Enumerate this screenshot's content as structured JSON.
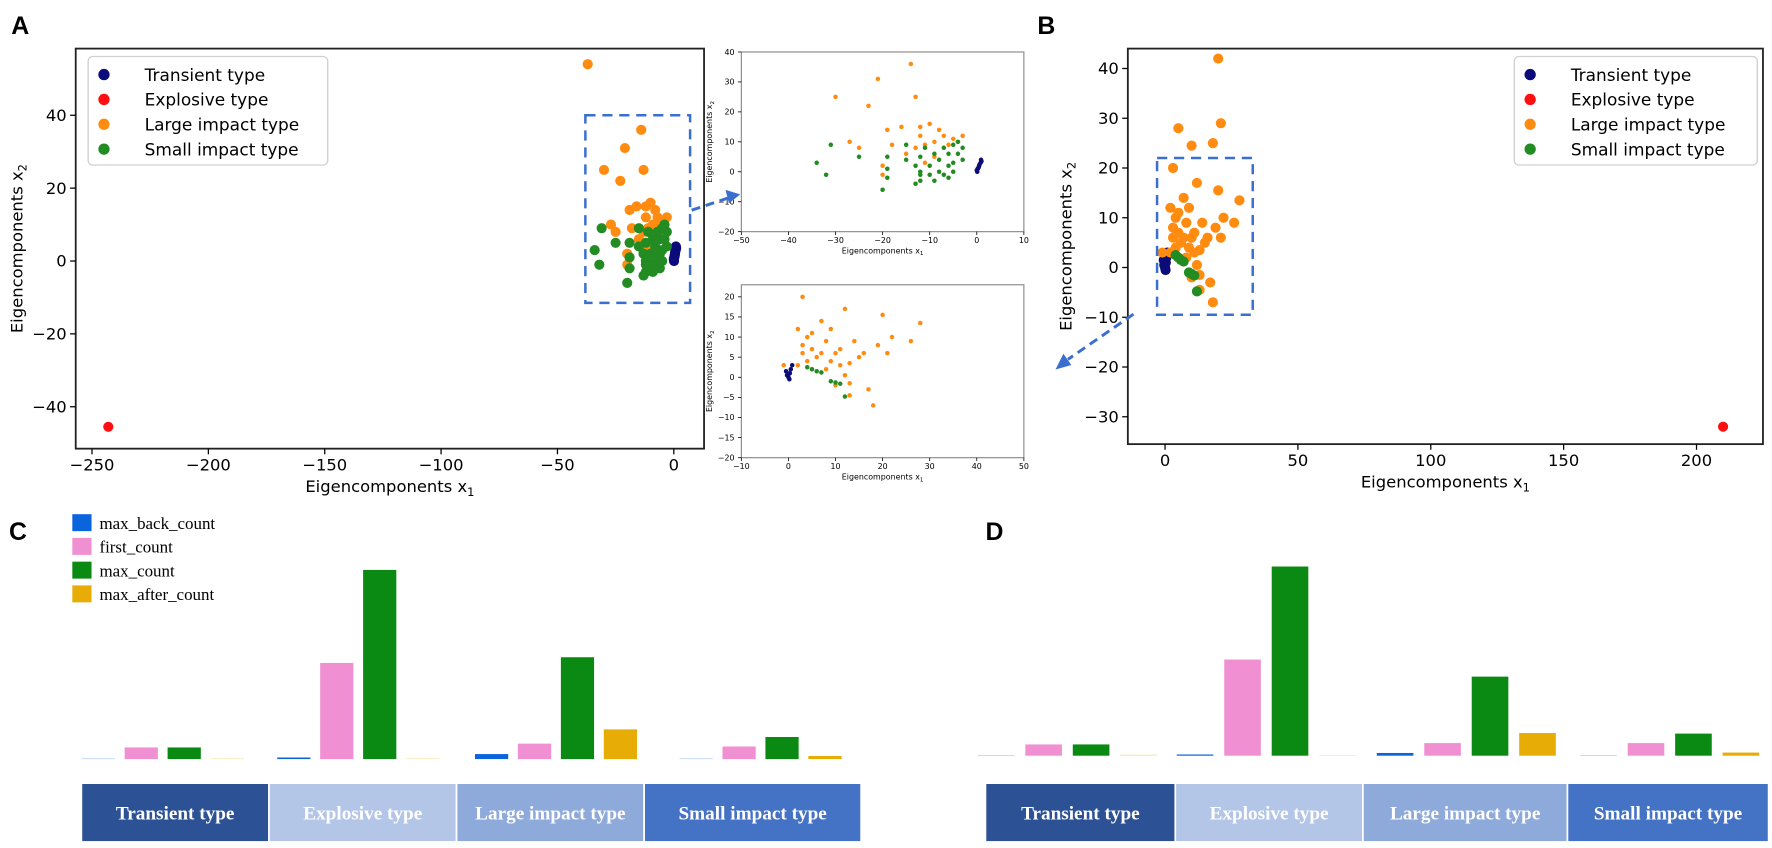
{
  "panels": {
    "a": "A",
    "b": "B",
    "c": "C",
    "d": "D"
  },
  "legend": [
    "Transient type",
    "Explosive type",
    "Large impact type",
    "Small impact type"
  ],
  "colors": {
    "transient": "#0b0b7a",
    "explosive": "#ff1010",
    "large": "#ff8c10",
    "small": "#228b22",
    "box": "#3a6fd0"
  },
  "chart_data": [
    {
      "id": "A",
      "type": "scatter",
      "xlabel": "Eigencomponents x",
      "xlabel_sub": "1",
      "ylabel": "Eigencomponents x",
      "ylabel_sub": "2",
      "xlim": [
        -257,
        13
      ],
      "ylim": [
        -51.5,
        58.3
      ],
      "xticks": [
        -250,
        -200,
        -150,
        -100,
        -50,
        0
      ],
      "yticks": [
        -40,
        -20,
        0,
        20,
        40
      ],
      "legend_position": "top-left",
      "zoom_box": {
        "x": [
          -38,
          7
        ],
        "y": [
          -11.5,
          40
        ]
      },
      "series": [
        {
          "name": "Transient type",
          "key": "transient",
          "points": [
            [
              0,
              0.5
            ],
            [
              0.2,
              1
            ],
            [
              0.4,
              1.5
            ],
            [
              0.5,
              2
            ],
            [
              0.6,
              2.5
            ],
            [
              0.8,
              3
            ],
            [
              1,
              3.5
            ],
            [
              0.3,
              1.2
            ],
            [
              0.1,
              0
            ],
            [
              0.9,
              4
            ]
          ]
        },
        {
          "name": "Explosive type",
          "key": "explosive",
          "points": [
            [
              -243,
              -45.5
            ]
          ]
        },
        {
          "name": "Large impact type",
          "key": "large",
          "points": [
            [
              -37,
              54
            ],
            [
              -30,
              25
            ],
            [
              -27,
              10
            ],
            [
              -23,
              22
            ],
            [
              -21,
              31
            ],
            [
              -20,
              2
            ],
            [
              -19,
              14
            ],
            [
              -18,
              9
            ],
            [
              -16,
              15
            ],
            [
              -14,
              36
            ],
            [
              -13,
              25
            ],
            [
              -12,
              12
            ],
            [
              -12,
              15
            ],
            [
              -11,
              9
            ],
            [
              -10,
              16
            ],
            [
              -9,
              10
            ],
            [
              -8,
              14
            ],
            [
              -7,
              12
            ],
            [
              -6,
              9
            ],
            [
              -5,
              11
            ],
            [
              -4,
              10
            ],
            [
              -3,
              12
            ],
            [
              -13,
              8
            ],
            [
              -15,
              6
            ],
            [
              -20,
              -1
            ],
            [
              -25,
              8
            ],
            [
              -9,
              5
            ],
            [
              -11,
              3
            ]
          ]
        },
        {
          "name": "Small impact type",
          "key": "small",
          "points": [
            [
              -34,
              3
            ],
            [
              -32,
              -1
            ],
            [
              -31,
              9
            ],
            [
              -25,
              5
            ],
            [
              -20,
              -6
            ],
            [
              -19,
              5
            ],
            [
              -19,
              1
            ],
            [
              -19,
              -2
            ],
            [
              -15,
              9
            ],
            [
              -15,
              4
            ],
            [
              -13,
              2
            ],
            [
              -12,
              0
            ],
            [
              -12,
              -3
            ],
            [
              -12,
              5
            ],
            [
              -11,
              8
            ],
            [
              -10,
              2
            ],
            [
              -9,
              6
            ],
            [
              -8,
              0
            ],
            [
              -8,
              4
            ],
            [
              -7,
              8
            ],
            [
              -6,
              2
            ],
            [
              -6,
              6
            ],
            [
              -5,
              9
            ],
            [
              -5,
              3
            ],
            [
              -4,
              6
            ],
            [
              -4,
              10
            ],
            [
              -3,
              4
            ],
            [
              -3,
              8
            ],
            [
              -13,
              -4
            ],
            [
              -12,
              -1
            ],
            [
              -7,
              -1
            ],
            [
              -6,
              -2
            ],
            [
              -9,
              -3
            ],
            [
              -10,
              -1
            ],
            [
              -5,
              0
            ]
          ]
        }
      ]
    },
    {
      "id": "A-inset",
      "type": "scatter",
      "source": "A",
      "xlabel": "Eigencomponents x",
      "xlabel_sub": "1",
      "ylabel": "Eigencomponents x",
      "ylabel_sub": "2",
      "xlim": [
        -50,
        10
      ],
      "ylim": [
        -20,
        40
      ],
      "xticks": [
        -50,
        -40,
        -30,
        -20,
        -10,
        0,
        10
      ],
      "yticks": [
        -20,
        -10,
        0,
        10,
        20,
        30,
        40
      ]
    },
    {
      "id": "B",
      "type": "scatter",
      "xlabel": "Eigencomponents x",
      "xlabel_sub": "1",
      "ylabel": "Eigencomponents x",
      "ylabel_sub": "2",
      "xlim": [
        -14,
        225
      ],
      "ylim": [
        -35.5,
        44
      ],
      "xticks": [
        0,
        50,
        100,
        150,
        200
      ],
      "yticks": [
        -30,
        -20,
        -10,
        0,
        10,
        20,
        30,
        40
      ],
      "legend_position": "top-right",
      "zoom_box": {
        "x": [
          -3,
          33
        ],
        "y": [
          -9.5,
          22
        ]
      },
      "series": [
        {
          "name": "Transient type",
          "key": "transient",
          "points": [
            [
              0,
              0
            ],
            [
              0.3,
              1
            ],
            [
              0.5,
              2
            ],
            [
              -0.3,
              0.5
            ],
            [
              0.2,
              -0.5
            ],
            [
              -0.5,
              1.5
            ],
            [
              0.8,
              3
            ]
          ]
        },
        {
          "name": "Explosive type",
          "key": "explosive",
          "points": [
            [
              210,
              -32
            ]
          ]
        },
        {
          "name": "Large impact type",
          "key": "large",
          "points": [
            [
              20,
              42
            ],
            [
              5,
              28
            ],
            [
              21,
              29
            ],
            [
              10,
              24.5
            ],
            [
              18,
              25
            ],
            [
              3,
              20
            ],
            [
              12,
              17
            ],
            [
              20,
              15.5
            ],
            [
              28,
              13.5
            ],
            [
              2,
              12
            ],
            [
              7,
              14
            ],
            [
              9,
              12
            ],
            [
              4,
              10
            ],
            [
              22,
              10
            ],
            [
              26,
              9
            ],
            [
              14,
              9
            ],
            [
              19,
              8
            ],
            [
              21,
              6
            ],
            [
              16,
              6
            ],
            [
              15,
              5
            ],
            [
              3,
              8
            ],
            [
              5,
              7
            ],
            [
              7,
              6
            ],
            [
              9,
              4
            ],
            [
              11,
              3
            ],
            [
              13,
              3.5
            ],
            [
              2,
              3
            ],
            [
              -1,
              3
            ],
            [
              12,
              0.5
            ],
            [
              13,
              -1.5
            ],
            [
              17,
              -3
            ],
            [
              10,
              -2
            ],
            [
              13,
              -4.5
            ],
            [
              18,
              -7
            ],
            [
              6,
              5
            ],
            [
              8,
              9
            ],
            [
              4,
              4
            ],
            [
              10,
              6
            ],
            [
              3,
              6
            ],
            [
              5,
              11
            ],
            [
              8,
              2
            ],
            [
              11,
              7
            ]
          ]
        },
        {
          "name": "Small impact type",
          "key": "small",
          "points": [
            [
              4,
              2.5
            ],
            [
              5,
              2
            ],
            [
              6,
              1.5
            ],
            [
              7,
              1.2
            ],
            [
              9,
              -1
            ],
            [
              10,
              -1.3
            ],
            [
              11,
              -1.6
            ],
            [
              12,
              -4.8
            ]
          ]
        }
      ]
    },
    {
      "id": "B-inset",
      "type": "scatter",
      "source": "B",
      "xlabel": "Eigencomponents x",
      "xlabel_sub": "1",
      "ylabel": "Eigencomponents x",
      "ylabel_sub": "2",
      "xlim": [
        -10,
        50
      ],
      "ylim": [
        -20,
        23
      ],
      "xticks": [
        -10,
        0,
        10,
        20,
        30,
        40,
        50
      ],
      "yticks": [
        -20,
        -15,
        -10,
        -5,
        0,
        5,
        10,
        15,
        20
      ]
    },
    {
      "id": "C",
      "type": "bar",
      "unit": "relative (max_count of Explosive type = 100)",
      "categories": [
        "Transient type",
        "Explosive type",
        "Large impact type",
        "Small impact type"
      ],
      "series": [
        {
          "name": "max_back_count",
          "color": "#0a64dc",
          "values": [
            0,
            1.2,
            3,
            0.6
          ]
        },
        {
          "name": "first_count",
          "color": "#f090d2",
          "values": [
            6.5,
            51,
            8.5,
            7
          ]
        },
        {
          "name": "max_count",
          "color": "#0a8a12",
          "values": [
            6.5,
            100,
            54,
            12
          ]
        },
        {
          "name": "max_after_count",
          "color": "#e8ac06",
          "values": [
            0.6,
            0,
            16,
            2
          ]
        }
      ],
      "legend_position": "top-left"
    },
    {
      "id": "D",
      "type": "bar",
      "unit": "relative (max_count of Explosive type = 100)",
      "categories": [
        "Transient type",
        "Explosive type",
        "Large impact type",
        "Small impact type"
      ],
      "series": [
        {
          "name": "max_back_count",
          "color": "#0a64dc",
          "values": [
            0,
            1,
            1.8,
            0.5
          ]
        },
        {
          "name": "first_count",
          "color": "#f090d2",
          "values": [
            6.3,
            51,
            7,
            7
          ]
        },
        {
          "name": "max_count",
          "color": "#0a8a12",
          "values": [
            6.3,
            100,
            42,
            12
          ]
        },
        {
          "name": "max_after_count",
          "color": "#e8ac06",
          "values": [
            0.9,
            0,
            12.3,
            2
          ]
        }
      ]
    }
  ],
  "category_colors": [
    "#2c5295",
    "#b3c6e7",
    "#8eaadb",
    "#4472c4"
  ]
}
